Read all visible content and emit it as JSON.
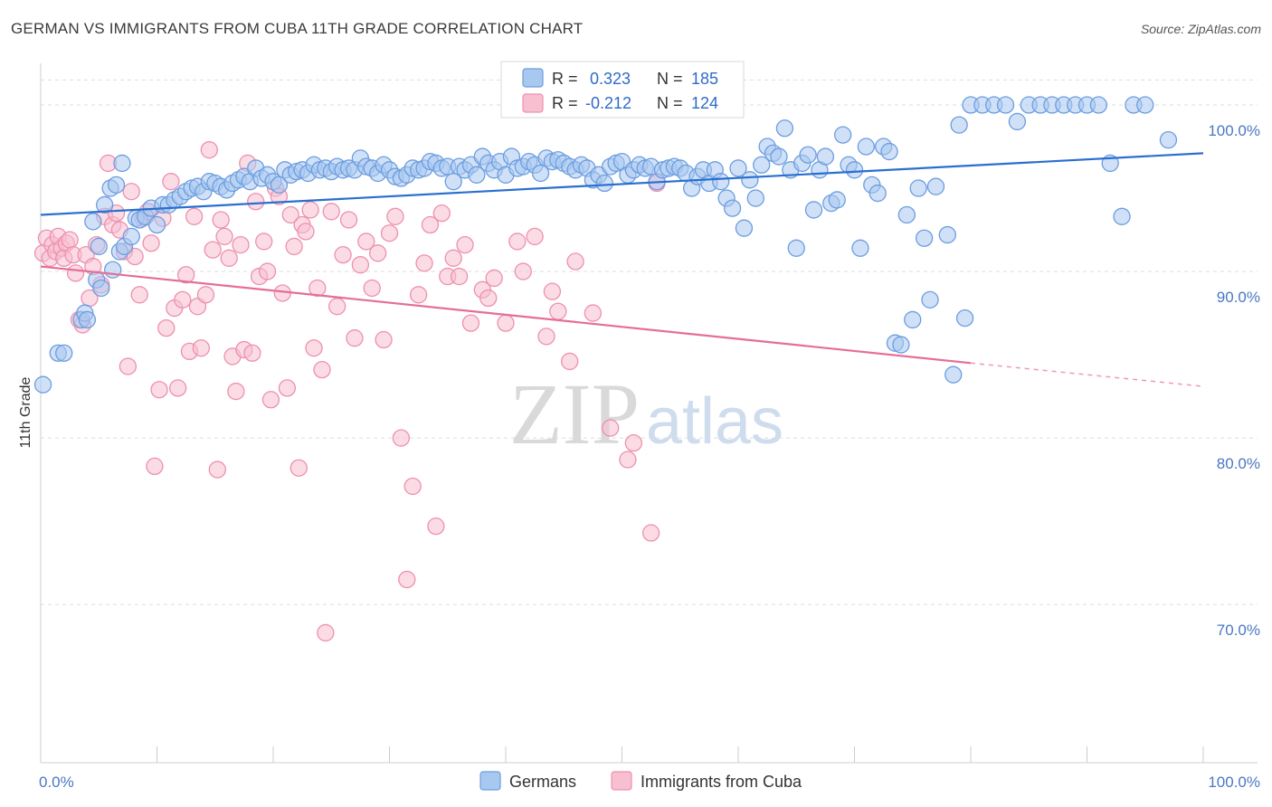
{
  "title": "GERMAN VS IMMIGRANTS FROM CUBA 11TH GRADE CORRELATION CHART",
  "source": "Source: ZipAtlas.com",
  "watermark": {
    "zip": "ZIP",
    "atlas": "atlas"
  },
  "colors": {
    "german_fill": "#a9c8f0",
    "german_stroke": "#6b9de0",
    "german_line": "#2a6fd0",
    "cuba_fill": "#f7bfd0",
    "cuba_stroke": "#ee8fb0",
    "cuba_line": "#e56e98",
    "grid": "#dedede",
    "axis_text": "#4a78c2"
  },
  "chart_data": {
    "type": "scatter",
    "title": "GERMAN VS IMMIGRANTS FROM CUBA 11TH GRADE CORRELATION CHART",
    "xlabel": "",
    "ylabel": "11th Grade",
    "xlim": [
      0,
      100
    ],
    "ylim": [
      60.5,
      102.5
    ],
    "x_tick_labels": [
      "0.0%",
      "100.0%"
    ],
    "y_ticks": [
      70,
      80,
      90,
      100
    ],
    "y_tick_labels": [
      "70.0%",
      "80.0%",
      "90.0%",
      "100.0%"
    ],
    "grid": true,
    "legend_top": [
      {
        "r_label": "R =",
        "r_value": "0.323",
        "n_label": "N =",
        "n_value": "185"
      },
      {
        "r_label": "R =",
        "r_value": "-0.212",
        "n_label": "N =",
        "n_value": "124"
      }
    ],
    "series": [
      {
        "name": "Germans",
        "trend": {
          "x": [
            0,
            100
          ],
          "y": [
            93.4,
            97.1
          ]
        },
        "points": [
          [
            0.2,
            83.2
          ],
          [
            1.5,
            85.1
          ],
          [
            2,
            85.1
          ],
          [
            3.5,
            87.1
          ],
          [
            3.8,
            87.5
          ],
          [
            4,
            87.1
          ],
          [
            4.5,
            93
          ],
          [
            5,
            91.5
          ],
          [
            5.5,
            94
          ],
          [
            6,
            95
          ],
          [
            6.5,
            95.2
          ],
          [
            7,
            96.5
          ],
          [
            4.8,
            89.5
          ],
          [
            5.2,
            89
          ],
          [
            6.2,
            90.1
          ],
          [
            6.8,
            91.2
          ],
          [
            7.2,
            91.5
          ],
          [
            7.8,
            92.1
          ],
          [
            8.2,
            93.2
          ],
          [
            8.5,
            93.1
          ],
          [
            9,
            93.3
          ],
          [
            9.5,
            93.8
          ],
          [
            10,
            92.8
          ],
          [
            10.5,
            94
          ],
          [
            11,
            94
          ],
          [
            11.5,
            94.3
          ],
          [
            12,
            94.5
          ],
          [
            12.5,
            94.8
          ],
          [
            13,
            95
          ],
          [
            13.5,
            95.1
          ],
          [
            14,
            94.8
          ],
          [
            14.5,
            95.4
          ],
          [
            15,
            95.3
          ],
          [
            15.5,
            95.1
          ],
          [
            16,
            94.9
          ],
          [
            16.5,
            95.3
          ],
          [
            17,
            95.5
          ],
          [
            17.5,
            95.7
          ],
          [
            18,
            95.4
          ],
          [
            18.5,
            96.2
          ],
          [
            19,
            95.6
          ],
          [
            19.5,
            95.8
          ],
          [
            20,
            95.4
          ],
          [
            20.5,
            95.2
          ],
          [
            21,
            96.1
          ],
          [
            21.5,
            95.8
          ],
          [
            22,
            96
          ],
          [
            22.5,
            96.1
          ],
          [
            23,
            95.9
          ],
          [
            23.5,
            96.4
          ],
          [
            24,
            96.1
          ],
          [
            24.5,
            96.2
          ],
          [
            25,
            96
          ],
          [
            25.5,
            96.3
          ],
          [
            26,
            96.1
          ],
          [
            26.5,
            96.2
          ],
          [
            27,
            96.1
          ],
          [
            27.5,
            96.8
          ],
          [
            28,
            96.3
          ],
          [
            28.5,
            96.2
          ],
          [
            29,
            95.9
          ],
          [
            29.5,
            96.4
          ],
          [
            30,
            96.1
          ],
          [
            30.5,
            95.7
          ],
          [
            31,
            95.6
          ],
          [
            31.5,
            95.8
          ],
          [
            32,
            96.2
          ],
          [
            32.5,
            96.1
          ],
          [
            33,
            96.2
          ],
          [
            33.5,
            96.6
          ],
          [
            34,
            96.5
          ],
          [
            34.5,
            96.2
          ],
          [
            35,
            96.3
          ],
          [
            35.5,
            95.4
          ],
          [
            36,
            96.3
          ],
          [
            36.5,
            96.1
          ],
          [
            37,
            96.4
          ],
          [
            37.5,
            95.8
          ],
          [
            38,
            96.9
          ],
          [
            38.5,
            96.5
          ],
          [
            39,
            96.1
          ],
          [
            39.5,
            96.6
          ],
          [
            40,
            95.8
          ],
          [
            40.5,
            96.9
          ],
          [
            41,
            96.2
          ],
          [
            41.5,
            96.3
          ],
          [
            42,
            96.6
          ],
          [
            42.5,
            96.4
          ],
          [
            43,
            95.9
          ],
          [
            43.5,
            96.8
          ],
          [
            44,
            96.6
          ],
          [
            44.5,
            96.7
          ],
          [
            45,
            96.5
          ],
          [
            45.5,
            96.3
          ],
          [
            46,
            96.1
          ],
          [
            46.5,
            96.4
          ],
          [
            47,
            96.2
          ],
          [
            47.5,
            95.5
          ],
          [
            48,
            95.8
          ],
          [
            48.5,
            95.3
          ],
          [
            49,
            96.3
          ],
          [
            49.5,
            96.5
          ],
          [
            50,
            96.6
          ],
          [
            50.5,
            95.8
          ],
          [
            51,
            96.1
          ],
          [
            51.5,
            96.4
          ],
          [
            52,
            96.2
          ],
          [
            52.5,
            96.3
          ],
          [
            53,
            95.4
          ],
          [
            53.5,
            96.1
          ],
          [
            54,
            96.2
          ],
          [
            54.5,
            96.3
          ],
          [
            55,
            96.2
          ],
          [
            55.5,
            95.9
          ],
          [
            56,
            95
          ],
          [
            56.5,
            95.7
          ],
          [
            57,
            96.1
          ],
          [
            57.5,
            95.3
          ],
          [
            58,
            96.1
          ],
          [
            58.5,
            95.4
          ],
          [
            59,
            94.4
          ],
          [
            59.5,
            93.8
          ],
          [
            60,
            96.2
          ],
          [
            60.5,
            92.6
          ],
          [
            61,
            95.5
          ],
          [
            61.5,
            94.4
          ],
          [
            62,
            96.4
          ],
          [
            62.5,
            97.5
          ],
          [
            63,
            97.1
          ],
          [
            63.5,
            96.9
          ],
          [
            64,
            98.6
          ],
          [
            64.5,
            96.1
          ],
          [
            65,
            91.4
          ],
          [
            65.5,
            96.5
          ],
          [
            66,
            97
          ],
          [
            66.5,
            93.7
          ],
          [
            67,
            96.1
          ],
          [
            67.5,
            96.9
          ],
          [
            68,
            94.1
          ],
          [
            68.5,
            94.3
          ],
          [
            69,
            98.2
          ],
          [
            69.5,
            96.4
          ],
          [
            70,
            96.1
          ],
          [
            70.5,
            91.4
          ],
          [
            71,
            97.5
          ],
          [
            71.5,
            95.2
          ],
          [
            72,
            94.7
          ],
          [
            72.5,
            97.5
          ],
          [
            73,
            97.2
          ],
          [
            73.5,
            85.7
          ],
          [
            74,
            85.6
          ],
          [
            74.5,
            93.4
          ],
          [
            75,
            87.1
          ],
          [
            75.5,
            95
          ],
          [
            76,
            92
          ],
          [
            76.5,
            88.3
          ],
          [
            77,
            95.1
          ],
          [
            78,
            92.2
          ],
          [
            78.5,
            83.8
          ],
          [
            79,
            98.8
          ],
          [
            79.5,
            87.2
          ],
          [
            80,
            100
          ],
          [
            81,
            100
          ],
          [
            82,
            100
          ],
          [
            83,
            100
          ],
          [
            84,
            99
          ],
          [
            85,
            100
          ],
          [
            86,
            100
          ],
          [
            87,
            100
          ],
          [
            88,
            100
          ],
          [
            89,
            100
          ],
          [
            90,
            100
          ],
          [
            91,
            100
          ],
          [
            92,
            96.5
          ],
          [
            93,
            93.3
          ],
          [
            94,
            100
          ],
          [
            95,
            100
          ],
          [
            97,
            97.9
          ]
        ]
      },
      {
        "name": "Immigrants from Cuba",
        "trend": {
          "x": [
            0,
            80
          ],
          "y": [
            90.3,
            84.5
          ]
        },
        "trend_dashed": {
          "x": [
            80,
            100
          ],
          "y": [
            84.5,
            83.1
          ]
        },
        "points": [
          [
            0.2,
            91.1
          ],
          [
            0.5,
            92
          ],
          [
            0.8,
            90.8
          ],
          [
            1,
            91.6
          ],
          [
            1.3,
            91.2
          ],
          [
            1.5,
            92.1
          ],
          [
            1.8,
            91.4
          ],
          [
            2,
            90.8
          ],
          [
            2.2,
            91.7
          ],
          [
            2.5,
            91.9
          ],
          [
            2.8,
            91
          ],
          [
            3,
            89.9
          ],
          [
            3.3,
            87.1
          ],
          [
            3.6,
            86.8
          ],
          [
            3.9,
            91
          ],
          [
            4.2,
            88.4
          ],
          [
            4.5,
            90.3
          ],
          [
            4.8,
            91.6
          ],
          [
            5.2,
            89.2
          ],
          [
            5.5,
            93.3
          ],
          [
            5.8,
            96.5
          ],
          [
            6.2,
            92.8
          ],
          [
            6.5,
            93.5
          ],
          [
            6.8,
            92.5
          ],
          [
            7.2,
            91.2
          ],
          [
            7.5,
            84.3
          ],
          [
            7.8,
            94.8
          ],
          [
            8.1,
            90.9
          ],
          [
            8.5,
            88.6
          ],
          [
            8.8,
            93.2
          ],
          [
            9.2,
            93.6
          ],
          [
            9.5,
            91.7
          ],
          [
            9.8,
            78.3
          ],
          [
            10.2,
            82.9
          ],
          [
            10.5,
            93.2
          ],
          [
            10.8,
            86.6
          ],
          [
            11.2,
            95.4
          ],
          [
            11.5,
            87.8
          ],
          [
            11.8,
            83
          ],
          [
            12.2,
            88.3
          ],
          [
            12.5,
            89.8
          ],
          [
            12.8,
            85.2
          ],
          [
            13.2,
            93.3
          ],
          [
            13.5,
            87.9
          ],
          [
            13.8,
            85.4
          ],
          [
            14.2,
            88.6
          ],
          [
            14.5,
            97.3
          ],
          [
            14.8,
            91.3
          ],
          [
            15.2,
            78.1
          ],
          [
            15.5,
            93.1
          ],
          [
            15.8,
            92.1
          ],
          [
            16.2,
            90.8
          ],
          [
            16.5,
            84.9
          ],
          [
            16.8,
            82.8
          ],
          [
            17.2,
            91.6
          ],
          [
            17.5,
            85.3
          ],
          [
            17.8,
            96.5
          ],
          [
            18.2,
            85.1
          ],
          [
            18.5,
            94.2
          ],
          [
            18.8,
            89.7
          ],
          [
            19.2,
            91.8
          ],
          [
            19.5,
            90
          ],
          [
            19.8,
            82.3
          ],
          [
            20.2,
            95
          ],
          [
            20.5,
            94.5
          ],
          [
            20.8,
            88.7
          ],
          [
            21.2,
            83
          ],
          [
            21.5,
            93.4
          ],
          [
            21.8,
            91.5
          ],
          [
            22.2,
            78.2
          ],
          [
            22.5,
            92.8
          ],
          [
            22.8,
            92.4
          ],
          [
            23.2,
            93.7
          ],
          [
            23.5,
            85.4
          ],
          [
            23.8,
            89
          ],
          [
            24.2,
            84.1
          ],
          [
            24.5,
            68.3
          ],
          [
            25,
            93.6
          ],
          [
            25.5,
            87.9
          ],
          [
            26,
            91
          ],
          [
            26.5,
            93.1
          ],
          [
            27,
            86
          ],
          [
            27.5,
            90.4
          ],
          [
            28,
            91.8
          ],
          [
            28.5,
            89
          ],
          [
            29,
            91.1
          ],
          [
            29.5,
            85.9
          ],
          [
            30,
            92.3
          ],
          [
            30.5,
            93.3
          ],
          [
            31,
            80
          ],
          [
            31.5,
            71.5
          ],
          [
            32,
            77.1
          ],
          [
            32.5,
            88.6
          ],
          [
            33,
            90.5
          ],
          [
            33.5,
            92.8
          ],
          [
            34,
            74.7
          ],
          [
            34.5,
            93.5
          ],
          [
            35,
            89.7
          ],
          [
            35.5,
            90.8
          ],
          [
            36,
            89.7
          ],
          [
            36.5,
            91.6
          ],
          [
            37,
            86.9
          ],
          [
            38,
            88.9
          ],
          [
            38.5,
            88.4
          ],
          [
            39,
            89.6
          ],
          [
            40,
            86.9
          ],
          [
            41,
            91.8
          ],
          [
            41.5,
            90
          ],
          [
            42.5,
            92.1
          ],
          [
            43.5,
            86.1
          ],
          [
            44,
            88.8
          ],
          [
            44.5,
            87.6
          ],
          [
            45.5,
            84.6
          ],
          [
            46,
            90.6
          ],
          [
            47.5,
            87.5
          ],
          [
            49,
            80.6
          ],
          [
            50.5,
            78.7
          ],
          [
            51,
            79.7
          ],
          [
            52.5,
            74.3
          ],
          [
            53,
            95.3
          ]
        ]
      }
    ]
  },
  "bottom_legend": [
    {
      "label": "Germans"
    },
    {
      "label": "Immigrants from Cuba"
    }
  ]
}
